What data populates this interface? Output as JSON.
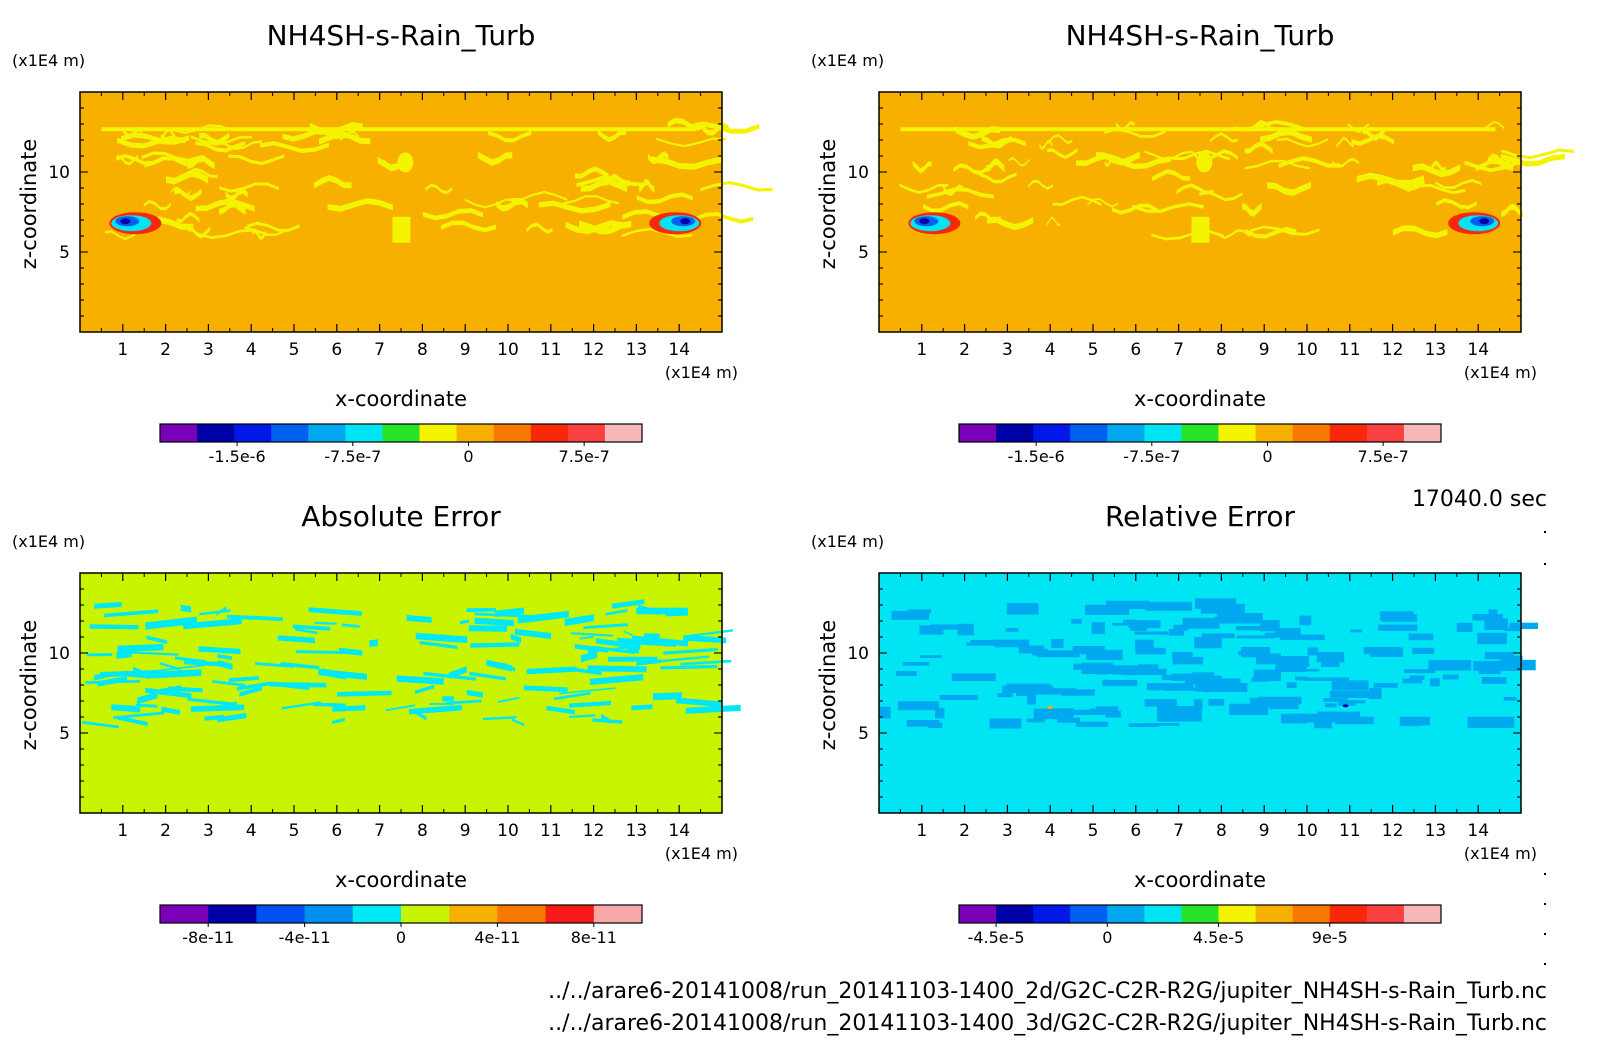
{
  "time_label": "17040.0 sec",
  "footer": {
    "line1": "../../arare6-20141008/run_20141103-1400_2d/G2C-C2R-R2G/jupiter_NH4SH-s-Rain_Turb.nc",
    "line2": "../../arare6-20141008/run_20141103-1400_3d/G2C-C2R-R2G/jupiter_NH4SH-s-Rain_Turb.nc"
  },
  "colors": {
    "nh4sh_scale": [
      "#7a00b8",
      "#0000a8",
      "#0018e8",
      "#0060f0",
      "#00a8f0",
      "#00e4f4",
      "#28e428",
      "#f4f400",
      "#f8b000",
      "#f87800",
      "#f82808",
      "#f84040",
      "#f8b8b8"
    ],
    "abs_scale": [
      "#7a00b8",
      "#0000a8",
      "#0050f0",
      "#0090f0",
      "#00e8f4",
      "#c8f400",
      "#f8b000",
      "#f87800",
      "#f81818",
      "#f8a8a8"
    ],
    "rel_scale": [
      "#7a00b8",
      "#0000a8",
      "#0018e8",
      "#0060f0",
      "#00a8f0",
      "#00e4f4",
      "#28e428",
      "#f4f400",
      "#f8b000",
      "#f87800",
      "#f82808",
      "#f84040",
      "#f8b8b8"
    ]
  },
  "chart_data": [
    {
      "type": "heatmap",
      "title": "NH4SH-s-Rain_Turb",
      "xlabel": "x-coordinate",
      "ylabel": "z-coordinate",
      "x_unit": "(x1E4 m)",
      "y_unit": "(x1E4 m)",
      "xlim": [
        0,
        15
      ],
      "ylim": [
        0,
        15
      ],
      "x_ticks": [
        1,
        2,
        3,
        4,
        5,
        6,
        7,
        8,
        9,
        10,
        11,
        12,
        13,
        14
      ],
      "y_ticks": [
        5,
        10
      ],
      "background_level": "0 to 1.25e-7",
      "colorbar": {
        "labels": [
          "-1.5e-6",
          "-7.5e-7",
          "0",
          "7.5e-7"
        ],
        "label_values": [
          -1.5e-06,
          -7.5e-07,
          0,
          7.5e-07
        ],
        "range": [
          -2e-06,
          1.125e-06
        ],
        "n_levels": 13
      }
    },
    {
      "type": "heatmap",
      "title": "NH4SH-s-Rain_Turb",
      "xlabel": "x-coordinate",
      "ylabel": "z-coordinate",
      "x_unit": "(x1E4 m)",
      "y_unit": "(x1E4 m)",
      "xlim": [
        0,
        15
      ],
      "ylim": [
        0,
        15
      ],
      "x_ticks": [
        1,
        2,
        3,
        4,
        5,
        6,
        7,
        8,
        9,
        10,
        11,
        12,
        13,
        14
      ],
      "y_ticks": [
        5,
        10
      ],
      "background_level": "0 to 1.25e-7",
      "colorbar": {
        "labels": [
          "-1.5e-6",
          "-7.5e-7",
          "0",
          "7.5e-7"
        ],
        "label_values": [
          -1.5e-06,
          -7.5e-07,
          0,
          7.5e-07
        ],
        "range": [
          -2e-06,
          1.125e-06
        ],
        "n_levels": 13
      }
    },
    {
      "type": "heatmap",
      "title": "Absolute Error",
      "xlabel": "x-coordinate",
      "ylabel": "z-coordinate",
      "x_unit": "(x1E4 m)",
      "y_unit": "(x1E4 m)",
      "xlim": [
        0,
        15
      ],
      "ylim": [
        0,
        15
      ],
      "x_ticks": [
        1,
        2,
        3,
        4,
        5,
        6,
        7,
        8,
        9,
        10,
        11,
        12,
        13,
        14
      ],
      "y_ticks": [
        5,
        10
      ],
      "background_level": "0 to 2e-11",
      "colorbar": {
        "labels": [
          "-8e-11",
          "-4e-11",
          "0",
          "4e-11",
          "8e-11"
        ],
        "label_values": [
          -8e-11,
          -4e-11,
          0,
          4e-11,
          8e-11
        ],
        "range": [
          -1e-10,
          1e-10
        ],
        "n_levels": 10
      }
    },
    {
      "type": "heatmap",
      "title": "Relative Error",
      "xlabel": "x-coordinate",
      "ylabel": "z-coordinate",
      "x_unit": "(x1E4 m)",
      "y_unit": "(x1E4 m)",
      "xlim": [
        0,
        15
      ],
      "ylim": [
        0,
        15
      ],
      "x_ticks": [
        1,
        2,
        3,
        4,
        5,
        6,
        7,
        8,
        9,
        10,
        11,
        12,
        13,
        14
      ],
      "y_ticks": [
        5,
        10
      ],
      "background_level": "0 to 1.5e-5",
      "colorbar": {
        "labels": [
          "-4.5e-5",
          "0",
          "4.5e-5",
          "9e-5"
        ],
        "label_values": [
          -4.5e-05,
          0,
          4.5e-05,
          9e-05
        ],
        "range": [
          -6e-05,
          0.000135
        ],
        "n_levels": 13
      }
    }
  ]
}
